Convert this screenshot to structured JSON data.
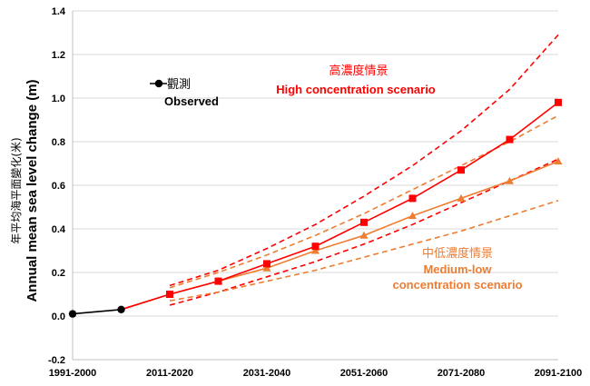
{
  "chart_data": {
    "type": "line",
    "ylabel": "Annual mean sea level change (m)",
    "ylabel_zh": "年平均海平面變化(米)",
    "ylim": [
      -0.2,
      1.4
    ],
    "yticks": [
      "-0.2",
      "0.0",
      "0.2",
      "0.4",
      "0.6",
      "0.8",
      "1.0",
      "1.2",
      "1.4"
    ],
    "ytick_values": [
      -0.2,
      0.0,
      0.2,
      0.4,
      0.6,
      0.8,
      1.0,
      1.2,
      1.4
    ],
    "xlim": [
      0,
      10
    ],
    "xticks": [
      "1991-2000",
      "2011-2020",
      "2031-2040",
      "2051-2060",
      "2071-2080",
      "2091-2100"
    ],
    "xtick_values": [
      0,
      2,
      4,
      6,
      8,
      10
    ],
    "grid": true,
    "series": [
      {
        "name": "Observed",
        "name_zh": "觀測",
        "color": "#000000",
        "marker": "circle",
        "x": [
          0,
          1
        ],
        "values": [
          0.01,
          0.03
        ]
      },
      {
        "name": "High concentration scenario",
        "name_zh": "高濃度情景",
        "color": "#ff0000",
        "marker": "square",
        "x": [
          1,
          2,
          3,
          4,
          5,
          6,
          7,
          8,
          9,
          10
        ],
        "values": [
          0.03,
          0.1,
          0.16,
          0.24,
          0.32,
          0.43,
          0.54,
          0.67,
          0.81,
          0.98
        ],
        "range_upper": {
          "x": [
            2,
            3,
            4,
            5,
            6,
            7,
            8,
            9,
            10
          ],
          "values": [
            0.14,
            0.21,
            0.31,
            0.42,
            0.55,
            0.69,
            0.85,
            1.04,
            1.29
          ]
        },
        "range_lower": {
          "x": [
            2,
            3,
            4,
            5,
            6,
            7,
            8,
            9,
            10
          ],
          "values": [
            0.05,
            0.11,
            0.18,
            0.25,
            0.33,
            0.42,
            0.52,
            0.62,
            0.72
          ]
        }
      },
      {
        "name": "Medium-low concentration scenario",
        "name_zh": "中低濃度情景",
        "color": "#ed7d31",
        "marker": "triangle",
        "x": [
          1,
          2,
          3,
          4,
          5,
          6,
          7,
          8,
          9,
          10
        ],
        "values": [
          0.03,
          0.1,
          0.16,
          0.22,
          0.3,
          0.37,
          0.46,
          0.54,
          0.62,
          0.71
        ],
        "range_upper": {
          "x": [
            2,
            3,
            4,
            5,
            6,
            7,
            8,
            9,
            10
          ],
          "values": [
            0.13,
            0.2,
            0.28,
            0.37,
            0.47,
            0.58,
            0.69,
            0.8,
            0.92
          ]
        },
        "range_lower": {
          "x": [
            2,
            3,
            4,
            5,
            6,
            7,
            8,
            9,
            10
          ],
          "values": [
            0.07,
            0.11,
            0.16,
            0.21,
            0.27,
            0.33,
            0.39,
            0.46,
            0.53
          ]
        }
      }
    ],
    "legend": {
      "observed_zh": "觀測",
      "observed": "Observed",
      "high_zh": "高濃度情景",
      "high": "High concentration scenario",
      "medium_zh": "中低濃度情景",
      "medium_line1": "Medium-low",
      "medium_line2": "concentration scenario"
    }
  }
}
